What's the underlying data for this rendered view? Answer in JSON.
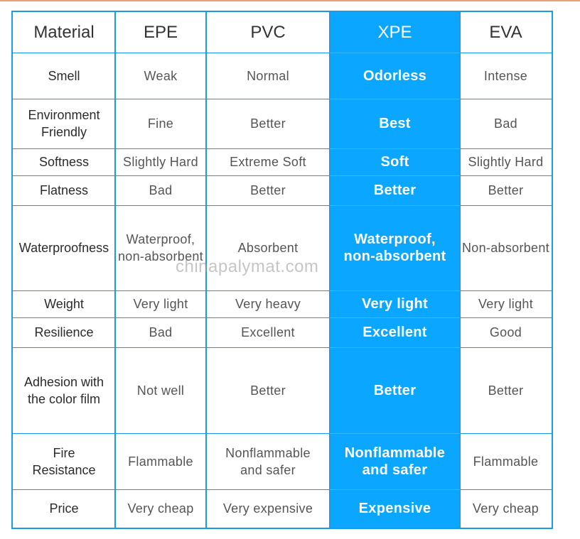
{
  "table": {
    "columns": [
      "Material",
      "EPE",
      "PVC",
      "XPE",
      "EVA"
    ],
    "rows": [
      {
        "label": "Smell",
        "epe": "Weak",
        "pvc": "Normal",
        "xpe": "Odorless",
        "eva": "Intense"
      },
      {
        "label": "Environment\nFriendly",
        "epe": "Fine",
        "pvc": "Better",
        "xpe": "Best",
        "eva": "Bad"
      },
      {
        "label": "Softness",
        "epe": "Slightly Hard",
        "pvc": "Extreme Soft",
        "xpe": "Soft",
        "eva": "Slightly Hard"
      },
      {
        "label": "Flatness",
        "epe": "Bad",
        "pvc": "Better",
        "xpe": "Better",
        "eva": "Better"
      },
      {
        "label": "Waterproofness",
        "epe": "Waterproof,\nnon-absorbent",
        "pvc": "Absorbent",
        "xpe": "Waterproof,\nnon-absorbent",
        "eva": "Non-absorbent"
      },
      {
        "label": "Weight",
        "epe": "Very light",
        "pvc": "Very heavy",
        "xpe": "Very light",
        "eva": "Very light"
      },
      {
        "label": "Resilience",
        "epe": "Bad",
        "pvc": "Excellent",
        "xpe": "Excellent",
        "eva": "Good"
      },
      {
        "label": "Adhesion with\nthe color film",
        "epe": "Not well",
        "pvc": "Better",
        "xpe": "Better",
        "eva": "Better"
      },
      {
        "label": "Fire\nResistance",
        "epe": "Flammable",
        "pvc": "Nonflammable\nand safer",
        "xpe": "Nonflammable\nand safer",
        "eva": "Flammable"
      },
      {
        "label": "Price",
        "epe": "Very cheap",
        "pvc": "Very expensive",
        "xpe": "Expensive",
        "eva": "Very cheap"
      }
    ]
  },
  "watermark": "chinapalymat.com",
  "colors": {
    "border": "#1a9be8",
    "highlight": "#0aa6ff",
    "highlight_text": "#ffffff"
  }
}
